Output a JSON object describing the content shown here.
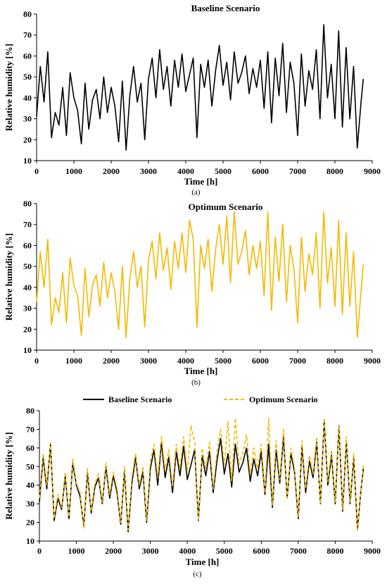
{
  "chart_data": [
    {
      "type": "line",
      "title": "Baseline Scenario",
      "xlabel": "Time [h]",
      "ylabel": "Relative humidity [%]",
      "caption": "(a)",
      "xlim": [
        0,
        9000
      ],
      "ylim": [
        10,
        80
      ],
      "xticks": [
        "0",
        "1000",
        "2000",
        "3000",
        "4000",
        "5000",
        "6000",
        "7000",
        "8000",
        "9000"
      ],
      "yticks": [
        "10",
        "20",
        "30",
        "40",
        "50",
        "60",
        "70",
        "80"
      ],
      "grid": false,
      "legend": "none",
      "series": [
        {
          "color": "#000000",
          "style": "solid",
          "x": [
            0,
            100,
            200,
            300,
            400,
            500,
            600,
            700,
            800,
            900,
            1000,
            1100,
            1200,
            1300,
            1400,
            1500,
            1600,
            1700,
            1800,
            1900,
            2000,
            2100,
            2200,
            2300,
            2400,
            2500,
            2600,
            2700,
            2800,
            2900,
            3000,
            3100,
            3200,
            3300,
            3400,
            3500,
            3600,
            3700,
            3800,
            3900,
            4000,
            4100,
            4200,
            4300,
            4400,
            4500,
            4600,
            4700,
            4800,
            4900,
            5000,
            5100,
            5200,
            5300,
            5400,
            5500,
            5600,
            5700,
            5800,
            5900,
            6000,
            6100,
            6200,
            6300,
            6400,
            6500,
            6600,
            6700,
            6800,
            6900,
            7000,
            7100,
            7200,
            7300,
            7400,
            7500,
            7600,
            7700,
            7800,
            7900,
            8000,
            8100,
            8200,
            8300,
            8400,
            8500,
            8600,
            8700,
            8760
          ],
          "y": [
            31,
            55,
            38,
            62,
            21,
            33,
            27,
            45,
            22,
            52,
            40,
            34,
            18,
            47,
            25,
            39,
            44,
            30,
            50,
            33,
            45,
            36,
            19,
            48,
            15,
            41,
            55,
            38,
            47,
            20,
            49,
            59,
            40,
            63,
            44,
            55,
            36,
            58,
            45,
            61,
            43,
            51,
            59,
            21,
            56,
            45,
            58,
            36,
            53,
            65,
            46,
            57,
            39,
            62,
            47,
            52,
            60,
            42,
            54,
            45,
            58,
            35,
            62,
            28,
            59,
            41,
            66,
            33,
            57,
            47,
            22,
            61,
            36,
            53,
            44,
            63,
            30,
            75,
            40,
            56,
            30,
            72,
            26,
            64,
            30,
            55,
            16,
            38,
            49
          ]
        }
      ]
    },
    {
      "type": "line",
      "title": "Optimum Scenario",
      "xlabel": "Time [h]",
      "ylabel": "Relative humidity [%]",
      "caption": "(b)",
      "xlim": [
        0,
        9000
      ],
      "ylim": [
        10,
        80
      ],
      "xticks": [
        "0",
        "1000",
        "2000",
        "3000",
        "4000",
        "5000",
        "6000",
        "7000",
        "8000",
        "9000"
      ],
      "yticks": [
        "10",
        "20",
        "30",
        "40",
        "50",
        "60",
        "70",
        "80"
      ],
      "grid": false,
      "legend": "none",
      "series": [
        {
          "color": "#F5B800",
          "style": "solid",
          "x": [
            0,
            100,
            200,
            300,
            400,
            500,
            600,
            700,
            800,
            900,
            1000,
            1100,
            1200,
            1300,
            1400,
            1500,
            1600,
            1700,
            1800,
            1900,
            2000,
            2100,
            2200,
            2300,
            2400,
            2500,
            2600,
            2700,
            2800,
            2900,
            3000,
            3100,
            3200,
            3300,
            3400,
            3500,
            3600,
            3700,
            3800,
            3900,
            4000,
            4100,
            4200,
            4300,
            4400,
            4500,
            4600,
            4700,
            4800,
            4900,
            5000,
            5100,
            5200,
            5300,
            5400,
            5500,
            5600,
            5700,
            5800,
            5900,
            6000,
            6100,
            6200,
            6300,
            6400,
            6500,
            6600,
            6700,
            6800,
            6900,
            7000,
            7100,
            7200,
            7300,
            7400,
            7500,
            7600,
            7700,
            7800,
            7900,
            8000,
            8100,
            8200,
            8300,
            8400,
            8500,
            8600,
            8700,
            8760
          ],
          "y": [
            33,
            57,
            40,
            63,
            22,
            35,
            28,
            47,
            23,
            54,
            41,
            36,
            17,
            49,
            26,
            41,
            46,
            31,
            52,
            35,
            47,
            38,
            20,
            50,
            16,
            44,
            57,
            40,
            50,
            21,
            53,
            62,
            44,
            66,
            48,
            59,
            39,
            62,
            49,
            66,
            47,
            72,
            63,
            21,
            60,
            49,
            63,
            38,
            58,
            70,
            51,
            74,
            42,
            76,
            51,
            57,
            67,
            46,
            60,
            49,
            62,
            36,
            76,
            29,
            64,
            43,
            70,
            33,
            60,
            49,
            23,
            64,
            38,
            56,
            46,
            66,
            30,
            76,
            42,
            59,
            31,
            72,
            27,
            66,
            31,
            57,
            16,
            38,
            51
          ]
        }
      ]
    },
    {
      "type": "line",
      "title": "",
      "xlabel": "Time [h]",
      "ylabel": "Relative humidity [%]",
      "caption": "(c)",
      "xlim": [
        0,
        9000
      ],
      "ylim": [
        10,
        80
      ],
      "xticks": [
        "0",
        "1000",
        "2000",
        "3000",
        "4000",
        "5000",
        "6000",
        "7000",
        "8000",
        "9000"
      ],
      "yticks": [
        "10",
        "20",
        "30",
        "40",
        "50",
        "60",
        "70",
        "80"
      ],
      "grid": false,
      "legend": "top",
      "series": [
        {
          "name": "Baseline Scenario",
          "color": "#000000",
          "style": "solid",
          "x": [
            0,
            100,
            200,
            300,
            400,
            500,
            600,
            700,
            800,
            900,
            1000,
            1100,
            1200,
            1300,
            1400,
            1500,
            1600,
            1700,
            1800,
            1900,
            2000,
            2100,
            2200,
            2300,
            2400,
            2500,
            2600,
            2700,
            2800,
            2900,
            3000,
            3100,
            3200,
            3300,
            3400,
            3500,
            3600,
            3700,
            3800,
            3900,
            4000,
            4100,
            4200,
            4300,
            4400,
            4500,
            4600,
            4700,
            4800,
            4900,
            5000,
            5100,
            5200,
            5300,
            5400,
            5500,
            5600,
            5700,
            5800,
            5900,
            6000,
            6100,
            6200,
            6300,
            6400,
            6500,
            6600,
            6700,
            6800,
            6900,
            7000,
            7100,
            7200,
            7300,
            7400,
            7500,
            7600,
            7700,
            7800,
            7900,
            8000,
            8100,
            8200,
            8300,
            8400,
            8500,
            8600,
            8700,
            8760
          ],
          "y": [
            31,
            55,
            38,
            62,
            21,
            33,
            27,
            45,
            22,
            52,
            40,
            34,
            18,
            47,
            25,
            39,
            44,
            30,
            50,
            33,
            45,
            36,
            19,
            48,
            15,
            41,
            55,
            38,
            47,
            20,
            49,
            59,
            40,
            63,
            44,
            55,
            36,
            58,
            45,
            61,
            43,
            51,
            59,
            21,
            56,
            45,
            58,
            36,
            53,
            65,
            46,
            57,
            39,
            62,
            47,
            52,
            60,
            42,
            54,
            45,
            58,
            35,
            62,
            28,
            59,
            41,
            66,
            33,
            57,
            47,
            22,
            61,
            36,
            53,
            44,
            63,
            30,
            75,
            40,
            56,
            30,
            72,
            26,
            64,
            30,
            55,
            16,
            38,
            49
          ]
        },
        {
          "name": "Optimum Scenario",
          "color": "#F5B800",
          "style": "dashed",
          "x": [
            0,
            100,
            200,
            300,
            400,
            500,
            600,
            700,
            800,
            900,
            1000,
            1100,
            1200,
            1300,
            1400,
            1500,
            1600,
            1700,
            1800,
            1900,
            2000,
            2100,
            2200,
            2300,
            2400,
            2500,
            2600,
            2700,
            2800,
            2900,
            3000,
            3100,
            3200,
            3300,
            3400,
            3500,
            3600,
            3700,
            3800,
            3900,
            4000,
            4100,
            4200,
            4300,
            4400,
            4500,
            4600,
            4700,
            4800,
            4900,
            5000,
            5100,
            5200,
            5300,
            5400,
            5500,
            5600,
            5700,
            5800,
            5900,
            6000,
            6100,
            6200,
            6300,
            6400,
            6500,
            6600,
            6700,
            6800,
            6900,
            7000,
            7100,
            7200,
            7300,
            7400,
            7500,
            7600,
            7700,
            7800,
            7900,
            8000,
            8100,
            8200,
            8300,
            8400,
            8500,
            8600,
            8700,
            8760
          ],
          "y": [
            33,
            57,
            40,
            63,
            22,
            35,
            28,
            47,
            23,
            54,
            41,
            36,
            17,
            49,
            26,
            41,
            46,
            31,
            52,
            35,
            47,
            38,
            20,
            50,
            16,
            44,
            57,
            40,
            50,
            21,
            53,
            62,
            44,
            66,
            48,
            59,
            39,
            62,
            49,
            66,
            47,
            72,
            63,
            21,
            60,
            49,
            63,
            38,
            58,
            70,
            51,
            74,
            42,
            76,
            51,
            57,
            67,
            46,
            60,
            49,
            62,
            36,
            76,
            29,
            64,
            43,
            70,
            33,
            60,
            49,
            23,
            64,
            38,
            56,
            46,
            66,
            30,
            76,
            42,
            59,
            31,
            72,
            27,
            66,
            31,
            57,
            16,
            38,
            51
          ]
        }
      ]
    }
  ]
}
